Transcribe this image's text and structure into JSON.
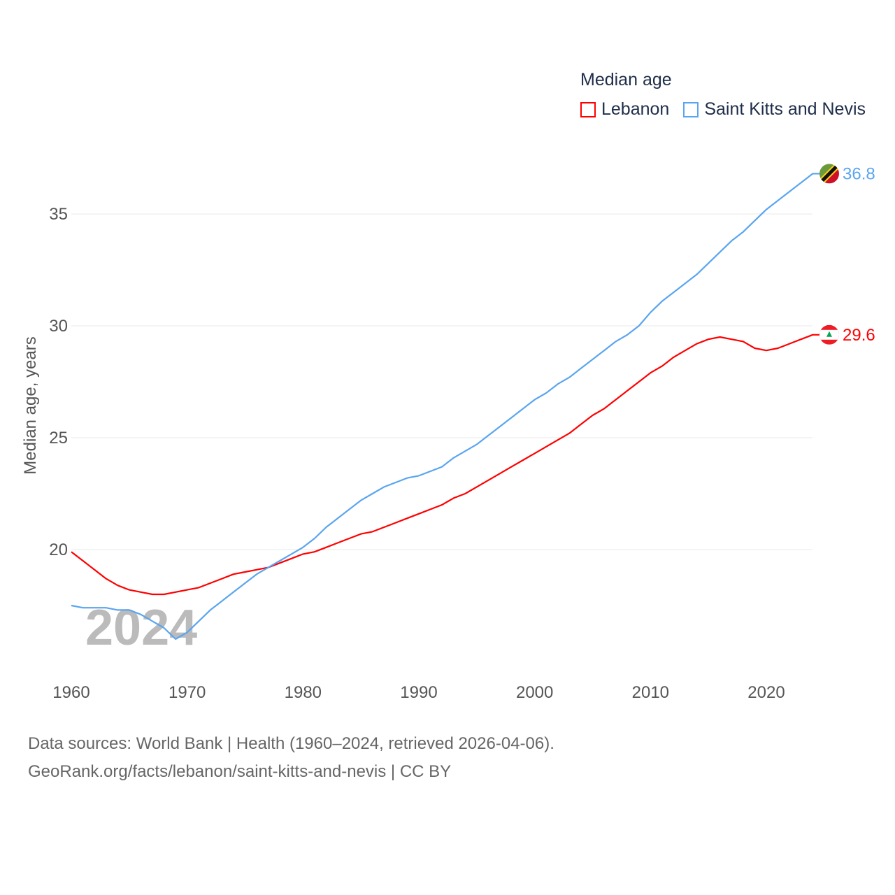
{
  "legend": {
    "title": "Median age"
  },
  "footer": {
    "line1": "Data sources: World Bank | Health (1960–2024, retrieved 2026-04-06).",
    "line2": "GeoRank.org/facts/lebanon/saint-kitts-and-nevis | CC BY"
  },
  "chart_data": {
    "type": "line",
    "title": "Median age",
    "xlabel": "",
    "ylabel": "Median age, years",
    "watermark_year": "2024",
    "xlim": [
      1960,
      2024
    ],
    "ylim": [
      15.5,
      37.5
    ],
    "xticks": [
      1960,
      1970,
      1980,
      1990,
      2000,
      2010,
      2020
    ],
    "yticks": [
      20,
      25,
      30,
      35
    ],
    "grid": true,
    "legend_position": "top-right",
    "x": [
      1960,
      1961,
      1962,
      1963,
      1964,
      1965,
      1966,
      1967,
      1968,
      1969,
      1970,
      1971,
      1972,
      1973,
      1974,
      1975,
      1976,
      1977,
      1978,
      1979,
      1980,
      1981,
      1982,
      1983,
      1984,
      1985,
      1986,
      1987,
      1988,
      1989,
      1990,
      1991,
      1992,
      1993,
      1994,
      1995,
      1996,
      1997,
      1998,
      1999,
      2000,
      2001,
      2002,
      2003,
      2004,
      2005,
      2006,
      2007,
      2008,
      2009,
      2010,
      2011,
      2012,
      2013,
      2014,
      2015,
      2016,
      2017,
      2018,
      2019,
      2020,
      2021,
      2022,
      2023,
      2024
    ],
    "series": [
      {
        "name": "Lebanon",
        "color": "#ff0000",
        "end_label": "29.6",
        "values": [
          19.9,
          19.5,
          19.1,
          18.7,
          18.4,
          18.2,
          18.1,
          18.0,
          18.0,
          18.1,
          18.2,
          18.3,
          18.5,
          18.7,
          18.9,
          19.0,
          19.1,
          19.2,
          19.4,
          19.6,
          19.8,
          19.9,
          20.1,
          20.3,
          20.5,
          20.7,
          20.8,
          21.0,
          21.2,
          21.4,
          21.6,
          21.8,
          22.0,
          22.3,
          22.5,
          22.8,
          23.1,
          23.4,
          23.7,
          24.0,
          24.3,
          24.6,
          24.9,
          25.2,
          25.6,
          26.0,
          26.3,
          26.7,
          27.1,
          27.5,
          27.9,
          28.2,
          28.6,
          28.9,
          29.2,
          29.4,
          29.5,
          29.4,
          29.3,
          29.0,
          28.9,
          29.0,
          29.2,
          29.4,
          29.6
        ]
      },
      {
        "name": "Saint Kitts and Nevis",
        "color": "#5aa5f0",
        "end_label": "36.8",
        "values": [
          17.5,
          17.4,
          17.4,
          17.4,
          17.3,
          17.3,
          17.1,
          16.8,
          16.5,
          16.0,
          16.3,
          16.8,
          17.3,
          17.7,
          18.1,
          18.5,
          18.9,
          19.2,
          19.5,
          19.8,
          20.1,
          20.5,
          21.0,
          21.4,
          21.8,
          22.2,
          22.5,
          22.8,
          23.0,
          23.2,
          23.3,
          23.5,
          23.7,
          24.1,
          24.4,
          24.7,
          25.1,
          25.5,
          25.9,
          26.3,
          26.7,
          27.0,
          27.4,
          27.7,
          28.1,
          28.5,
          28.9,
          29.3,
          29.6,
          30.0,
          30.6,
          31.1,
          31.5,
          31.9,
          32.3,
          32.8,
          33.3,
          33.8,
          34.2,
          34.7,
          35.2,
          35.6,
          36.0,
          36.4,
          36.8
        ]
      }
    ]
  }
}
